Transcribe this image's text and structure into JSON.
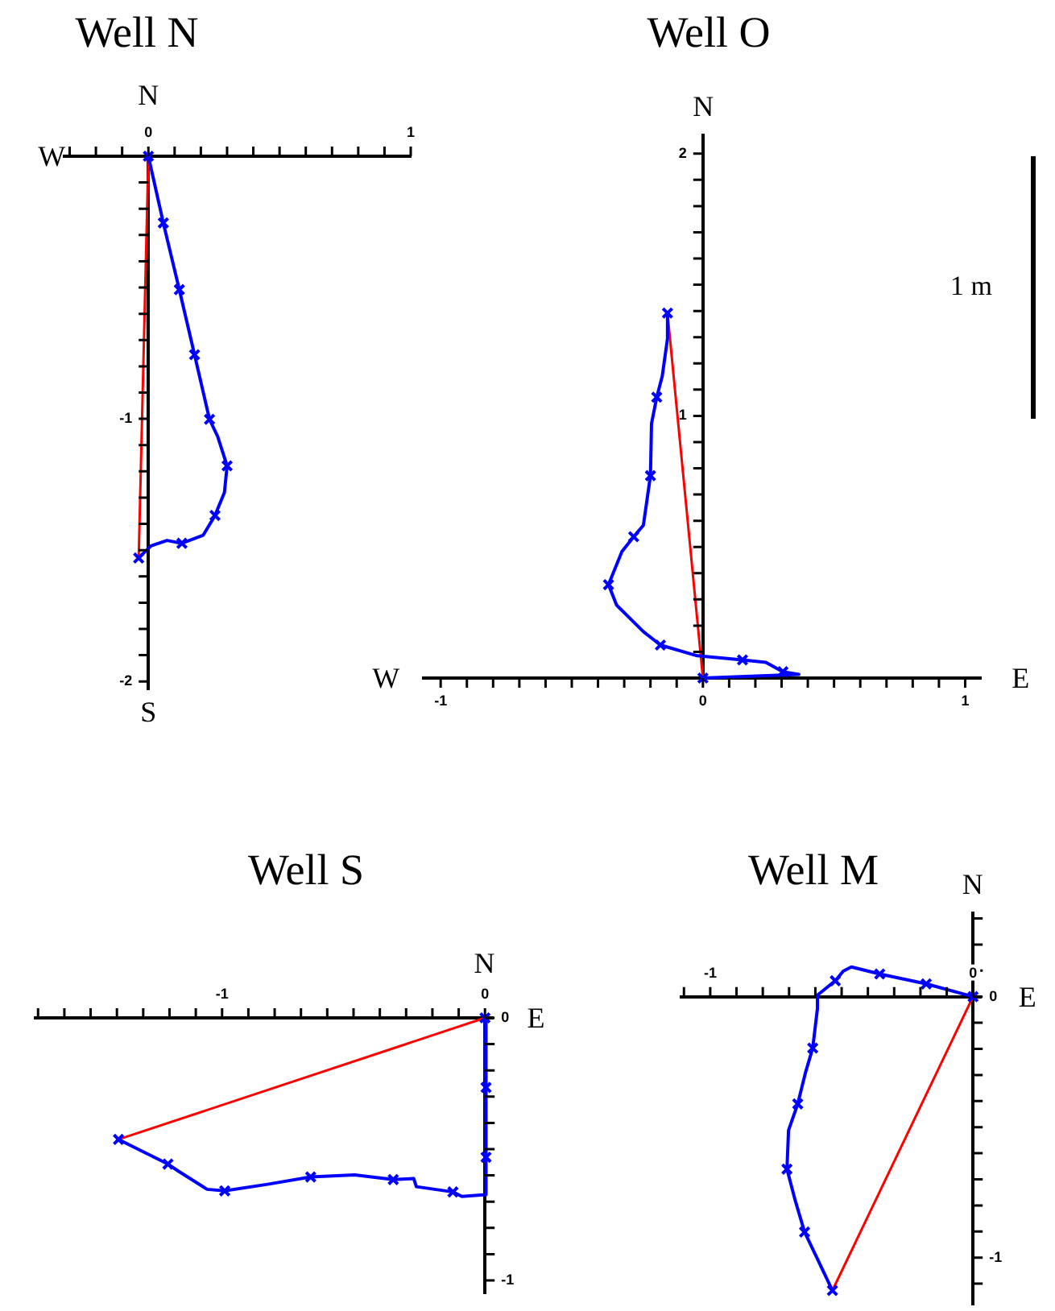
{
  "chart_data": [
    {
      "type": "line",
      "title": "Well N",
      "xlim": [
        -0.32,
        1
      ],
      "ylim": [
        -2.03,
        0
      ],
      "xticks": [
        {
          "value": -0.3,
          "label": null
        },
        {
          "value": -0.2,
          "label": null
        },
        {
          "value": -0.1,
          "label": null
        },
        0,
        {
          "value": 0.1,
          "label": null
        },
        {
          "value": 0.2,
          "label": null
        },
        {
          "value": 0.3,
          "label": null
        },
        {
          "value": 0.4,
          "label": null
        },
        {
          "value": 0.5,
          "label": null
        },
        {
          "value": 0.6,
          "label": null
        },
        {
          "value": 0.7,
          "label": null
        },
        {
          "value": 0.8,
          "label": null
        },
        {
          "value": 0.9,
          "label": null
        },
        1
      ],
      "yticks": [
        {
          "value": -0.1,
          "label": null
        },
        {
          "value": -0.2,
          "label": null
        },
        {
          "value": -0.3,
          "label": null
        },
        {
          "value": -0.4,
          "label": null
        },
        {
          "value": -0.5,
          "label": null
        },
        {
          "value": -0.6,
          "label": null
        },
        {
          "value": -0.7,
          "label": null
        },
        {
          "value": -0.8,
          "label": null
        },
        {
          "value": -0.9,
          "label": null
        },
        -1,
        {
          "value": -1.1,
          "label": null
        },
        {
          "value": -1.2,
          "label": null
        },
        {
          "value": -1.3,
          "label": null
        },
        {
          "value": -1.4,
          "label": null
        },
        {
          "value": -1.5,
          "label": null
        },
        {
          "value": -1.6,
          "label": null
        },
        {
          "value": -1.7,
          "label": null
        },
        {
          "value": -1.8,
          "label": null
        },
        {
          "value": -1.9,
          "label": null
        },
        -2
      ],
      "annotations": [
        "N",
        "W",
        "S"
      ],
      "series": [
        {
          "type": "line",
          "marker": "none",
          "color": "#0000ff",
          "x": [
            0,
            0.057,
            0.118,
            0.176,
            0.233,
            0.264,
            0.3,
            0.29,
            0.254,
            0.209,
            0.128,
            0.071,
            0.01,
            -0.037
          ],
          "values": [
            0,
            -0.254,
            -0.508,
            -0.756,
            -1.002,
            -1.067,
            -1.179,
            -1.28,
            -1.368,
            -1.443,
            -1.474,
            -1.463,
            -1.484,
            -1.53
          ]
        },
        {
          "type": "scatter",
          "marker": "cross",
          "color": "#0000ff",
          "x": [
            0,
            0.057,
            0.118,
            0.176,
            0.233,
            0.3,
            0.254,
            0.128,
            -0.037
          ],
          "values": [
            0,
            -0.254,
            -0.508,
            -0.756,
            -1.002,
            -1.179,
            -1.368,
            -1.474,
            -1.53
          ]
        },
        {
          "type": "line",
          "marker": "none",
          "color": "#ff0000",
          "x": [
            0,
            -0.037
          ],
          "values": [
            0,
            -1.53
          ]
        }
      ]
    },
    {
      "type": "line",
      "title": "Well O",
      "xlim": [
        -1.065,
        1.06
      ],
      "ylim": [
        0,
        2.07
      ],
      "xticks": [
        -1,
        {
          "value": -0.9,
          "label": null
        },
        {
          "value": -0.8,
          "label": null
        },
        {
          "value": -0.7,
          "label": null
        },
        {
          "value": -0.6,
          "label": null
        },
        {
          "value": -0.5,
          "label": null
        },
        {
          "value": -0.4,
          "label": null
        },
        {
          "value": -0.3,
          "label": null
        },
        {
          "value": -0.2,
          "label": null
        },
        {
          "value": -0.1,
          "label": null
        },
        0,
        {
          "value": 0.1,
          "label": null
        },
        {
          "value": 0.2,
          "label": null
        },
        {
          "value": 0.3,
          "label": null
        },
        {
          "value": 0.4,
          "label": null
        },
        {
          "value": 0.5,
          "label": null
        },
        {
          "value": 0.6,
          "label": null
        },
        {
          "value": 0.7,
          "label": null
        },
        {
          "value": 0.8,
          "label": null
        },
        {
          "value": 0.9,
          "label": null
        },
        1
      ],
      "yticks": [
        {
          "value": 0.1,
          "label": null
        },
        {
          "value": 0.2,
          "label": null
        },
        {
          "value": 0.3,
          "label": null
        },
        {
          "value": 0.4,
          "label": null
        },
        {
          "value": 0.5,
          "label": null
        },
        {
          "value": 0.6,
          "label": null
        },
        {
          "value": 0.7,
          "label": null
        },
        {
          "value": 0.8,
          "label": null
        },
        {
          "value": 0.9,
          "label": null
        },
        1,
        {
          "value": 1.1,
          "label": null
        },
        {
          "value": 1.2,
          "label": null
        },
        {
          "value": 1.3,
          "label": null
        },
        {
          "value": 1.4,
          "label": null
        },
        {
          "value": 1.5,
          "label": null
        },
        {
          "value": 1.6,
          "label": null
        },
        {
          "value": 1.7,
          "label": null
        },
        {
          "value": 1.8,
          "label": null
        },
        {
          "value": 1.9,
          "label": null
        },
        2
      ],
      "annotations": [
        "N",
        "W",
        "E",
        "1 m"
      ],
      "series": [
        {
          "type": "line",
          "marker": "none",
          "color": "#0000ff",
          "x": [
            0,
            0.366,
            0.305,
            0.24,
            0.151,
            -0.022,
            -0.162,
            -0.227,
            -0.329,
            -0.36,
            -0.309,
            -0.264,
            -0.227,
            -0.2,
            -0.196,
            -0.176,
            -0.155,
            -0.135,
            -0.135
          ],
          "values": [
            0,
            0.014,
            0.024,
            0.06,
            0.069,
            0.085,
            0.126,
            0.177,
            0.278,
            0.356,
            0.482,
            0.539,
            0.583,
            0.772,
            0.97,
            1.071,
            1.152,
            1.295,
            1.392
          ]
        },
        {
          "type": "scatter",
          "marker": "cross",
          "color": "#0000ff",
          "x": [
            0,
            0.305,
            0.151,
            -0.162,
            -0.36,
            -0.264,
            -0.2,
            -0.176,
            -0.135
          ],
          "values": [
            0,
            0.024,
            0.069,
            0.126,
            0.356,
            0.539,
            0.772,
            1.071,
            1.392
          ]
        },
        {
          "type": "line",
          "marker": "none",
          "color": "#ff0000",
          "x": [
            0,
            -0.135
          ],
          "values": [
            0,
            1.392
          ]
        }
      ]
    },
    {
      "type": "line",
      "title": "Well S",
      "xlim": [
        -1.71,
        0.03
      ],
      "ylim": [
        -1.05,
        0
      ],
      "xticks": [
        {
          "value": -1.7,
          "label": null
        },
        {
          "value": -1.6,
          "label": null
        },
        {
          "value": -1.5,
          "label": null
        },
        {
          "value": -1.4,
          "label": null
        },
        {
          "value": -1.3,
          "label": null
        },
        {
          "value": -1.2,
          "label": null
        },
        {
          "value": -1.1,
          "label": null
        },
        -1,
        {
          "value": -0.9,
          "label": null
        },
        {
          "value": -0.8,
          "label": null
        },
        {
          "value": -0.7,
          "label": null
        },
        {
          "value": -0.6,
          "label": null
        },
        {
          "value": -0.5,
          "label": null
        },
        {
          "value": -0.4,
          "label": null
        },
        {
          "value": -0.3,
          "label": null
        },
        {
          "value": -0.2,
          "label": null
        },
        {
          "value": -0.1,
          "label": null
        },
        0
      ],
      "yticks": [
        0,
        {
          "value": -0.1,
          "label": null
        },
        {
          "value": -0.2,
          "label": null
        },
        {
          "value": -0.3,
          "label": null
        },
        {
          "value": -0.4,
          "label": null
        },
        {
          "value": -0.5,
          "label": null
        },
        {
          "value": -0.6,
          "label": null
        },
        {
          "value": -0.7,
          "label": null
        },
        {
          "value": -0.8,
          "label": null
        },
        {
          "value": -0.9,
          "label": null
        },
        -1
      ],
      "annotations": [
        "N",
        "E"
      ],
      "series": [
        {
          "type": "line",
          "marker": "none",
          "color": "#0000ff",
          "x": [
            0,
            0.004,
            0.004,
            0.004,
            0.004,
            0.004,
            -0.088,
            -0.122,
            -0.261,
            -0.271,
            -0.349,
            -0.496,
            -0.663,
            -0.822,
            -0.99,
            -1.057,
            -1.169,
            -1.206,
            -1.394
          ],
          "values": [
            0,
            -0.133,
            -0.265,
            -0.398,
            -0.531,
            -0.673,
            -0.68,
            -0.663,
            -0.643,
            -0.612,
            -0.616,
            -0.598,
            -0.606,
            -0.633,
            -0.659,
            -0.653,
            -0.582,
            -0.557,
            -0.463
          ]
        },
        {
          "type": "scatter",
          "marker": "cross",
          "color": "#0000ff",
          "x": [
            0,
            0.004,
            0.004,
            -0.122,
            -0.349,
            -0.663,
            -0.99,
            -1.206,
            -1.394
          ],
          "values": [
            0,
            -0.265,
            -0.531,
            -0.663,
            -0.616,
            -0.606,
            -0.659,
            -0.557,
            -0.463
          ]
        },
        {
          "type": "line",
          "marker": "none",
          "color": "#ff0000",
          "x": [
            0,
            -1.394
          ],
          "values": [
            0,
            -0.463
          ]
        }
      ]
    },
    {
      "type": "line",
      "title": "Well M",
      "xlim": [
        -1.11,
        0.03
      ],
      "ylim": [
        -1.18,
        0.32
      ],
      "xticks": [
        {
          "value": -1.1,
          "label": null
        },
        -1,
        {
          "value": -0.9,
          "label": null
        },
        {
          "value": -0.8,
          "label": null
        },
        {
          "value": -0.7,
          "label": null
        },
        {
          "value": -0.6,
          "label": null
        },
        {
          "value": -0.5,
          "label": null
        },
        {
          "value": -0.4,
          "label": null
        },
        {
          "value": -0.3,
          "label": null
        },
        {
          "value": -0.2,
          "label": null
        },
        {
          "value": -0.1,
          "label": null
        },
        0
      ],
      "yticks": [
        {
          "value": 0.3,
          "label": null
        },
        {
          "value": 0.2,
          "label": null
        },
        {
          "value": 0.1,
          "label": null
        },
        0,
        {
          "value": -0.1,
          "label": null
        },
        {
          "value": -0.2,
          "label": null
        },
        {
          "value": -0.3,
          "label": null
        },
        {
          "value": -0.4,
          "label": null
        },
        {
          "value": -0.5,
          "label": null
        },
        {
          "value": -0.6,
          "label": null
        },
        {
          "value": -0.7,
          "label": null
        },
        {
          "value": -0.8,
          "label": null
        },
        {
          "value": -0.9,
          "label": null
        },
        -1,
        {
          "value": -1.1,
          "label": null
        }
      ],
      "annotations": [
        "N",
        "E"
      ],
      "series": [
        {
          "type": "line",
          "marker": "none",
          "color": "#0000ff",
          "x": [
            0,
            -0.178,
            -0.355,
            -0.463,
            -0.494,
            -0.524,
            -0.592,
            -0.592,
            -0.61,
            -0.637,
            -0.667,
            -0.702,
            -0.708,
            -0.678,
            -0.641,
            -0.535
          ],
          "values": [
            0,
            0.049,
            0.087,
            0.114,
            0.098,
            0.061,
            0.006,
            -0.045,
            -0.197,
            -0.289,
            -0.411,
            -0.512,
            -0.661,
            -0.776,
            -0.902,
            -1.126
          ]
        },
        {
          "type": "scatter",
          "marker": "cross",
          "color": "#0000ff",
          "x": [
            0,
            -0.178,
            -0.355,
            -0.524,
            -0.61,
            -0.667,
            -0.708,
            -0.641,
            -0.535
          ],
          "values": [
            0,
            0.049,
            0.087,
            0.061,
            -0.197,
            -0.411,
            -0.661,
            -0.902,
            -1.126
          ]
        },
        {
          "type": "line",
          "marker": "none",
          "color": "#ff0000",
          "x": [
            0,
            -0.535
          ],
          "values": [
            0,
            -1.126
          ]
        }
      ]
    }
  ]
}
